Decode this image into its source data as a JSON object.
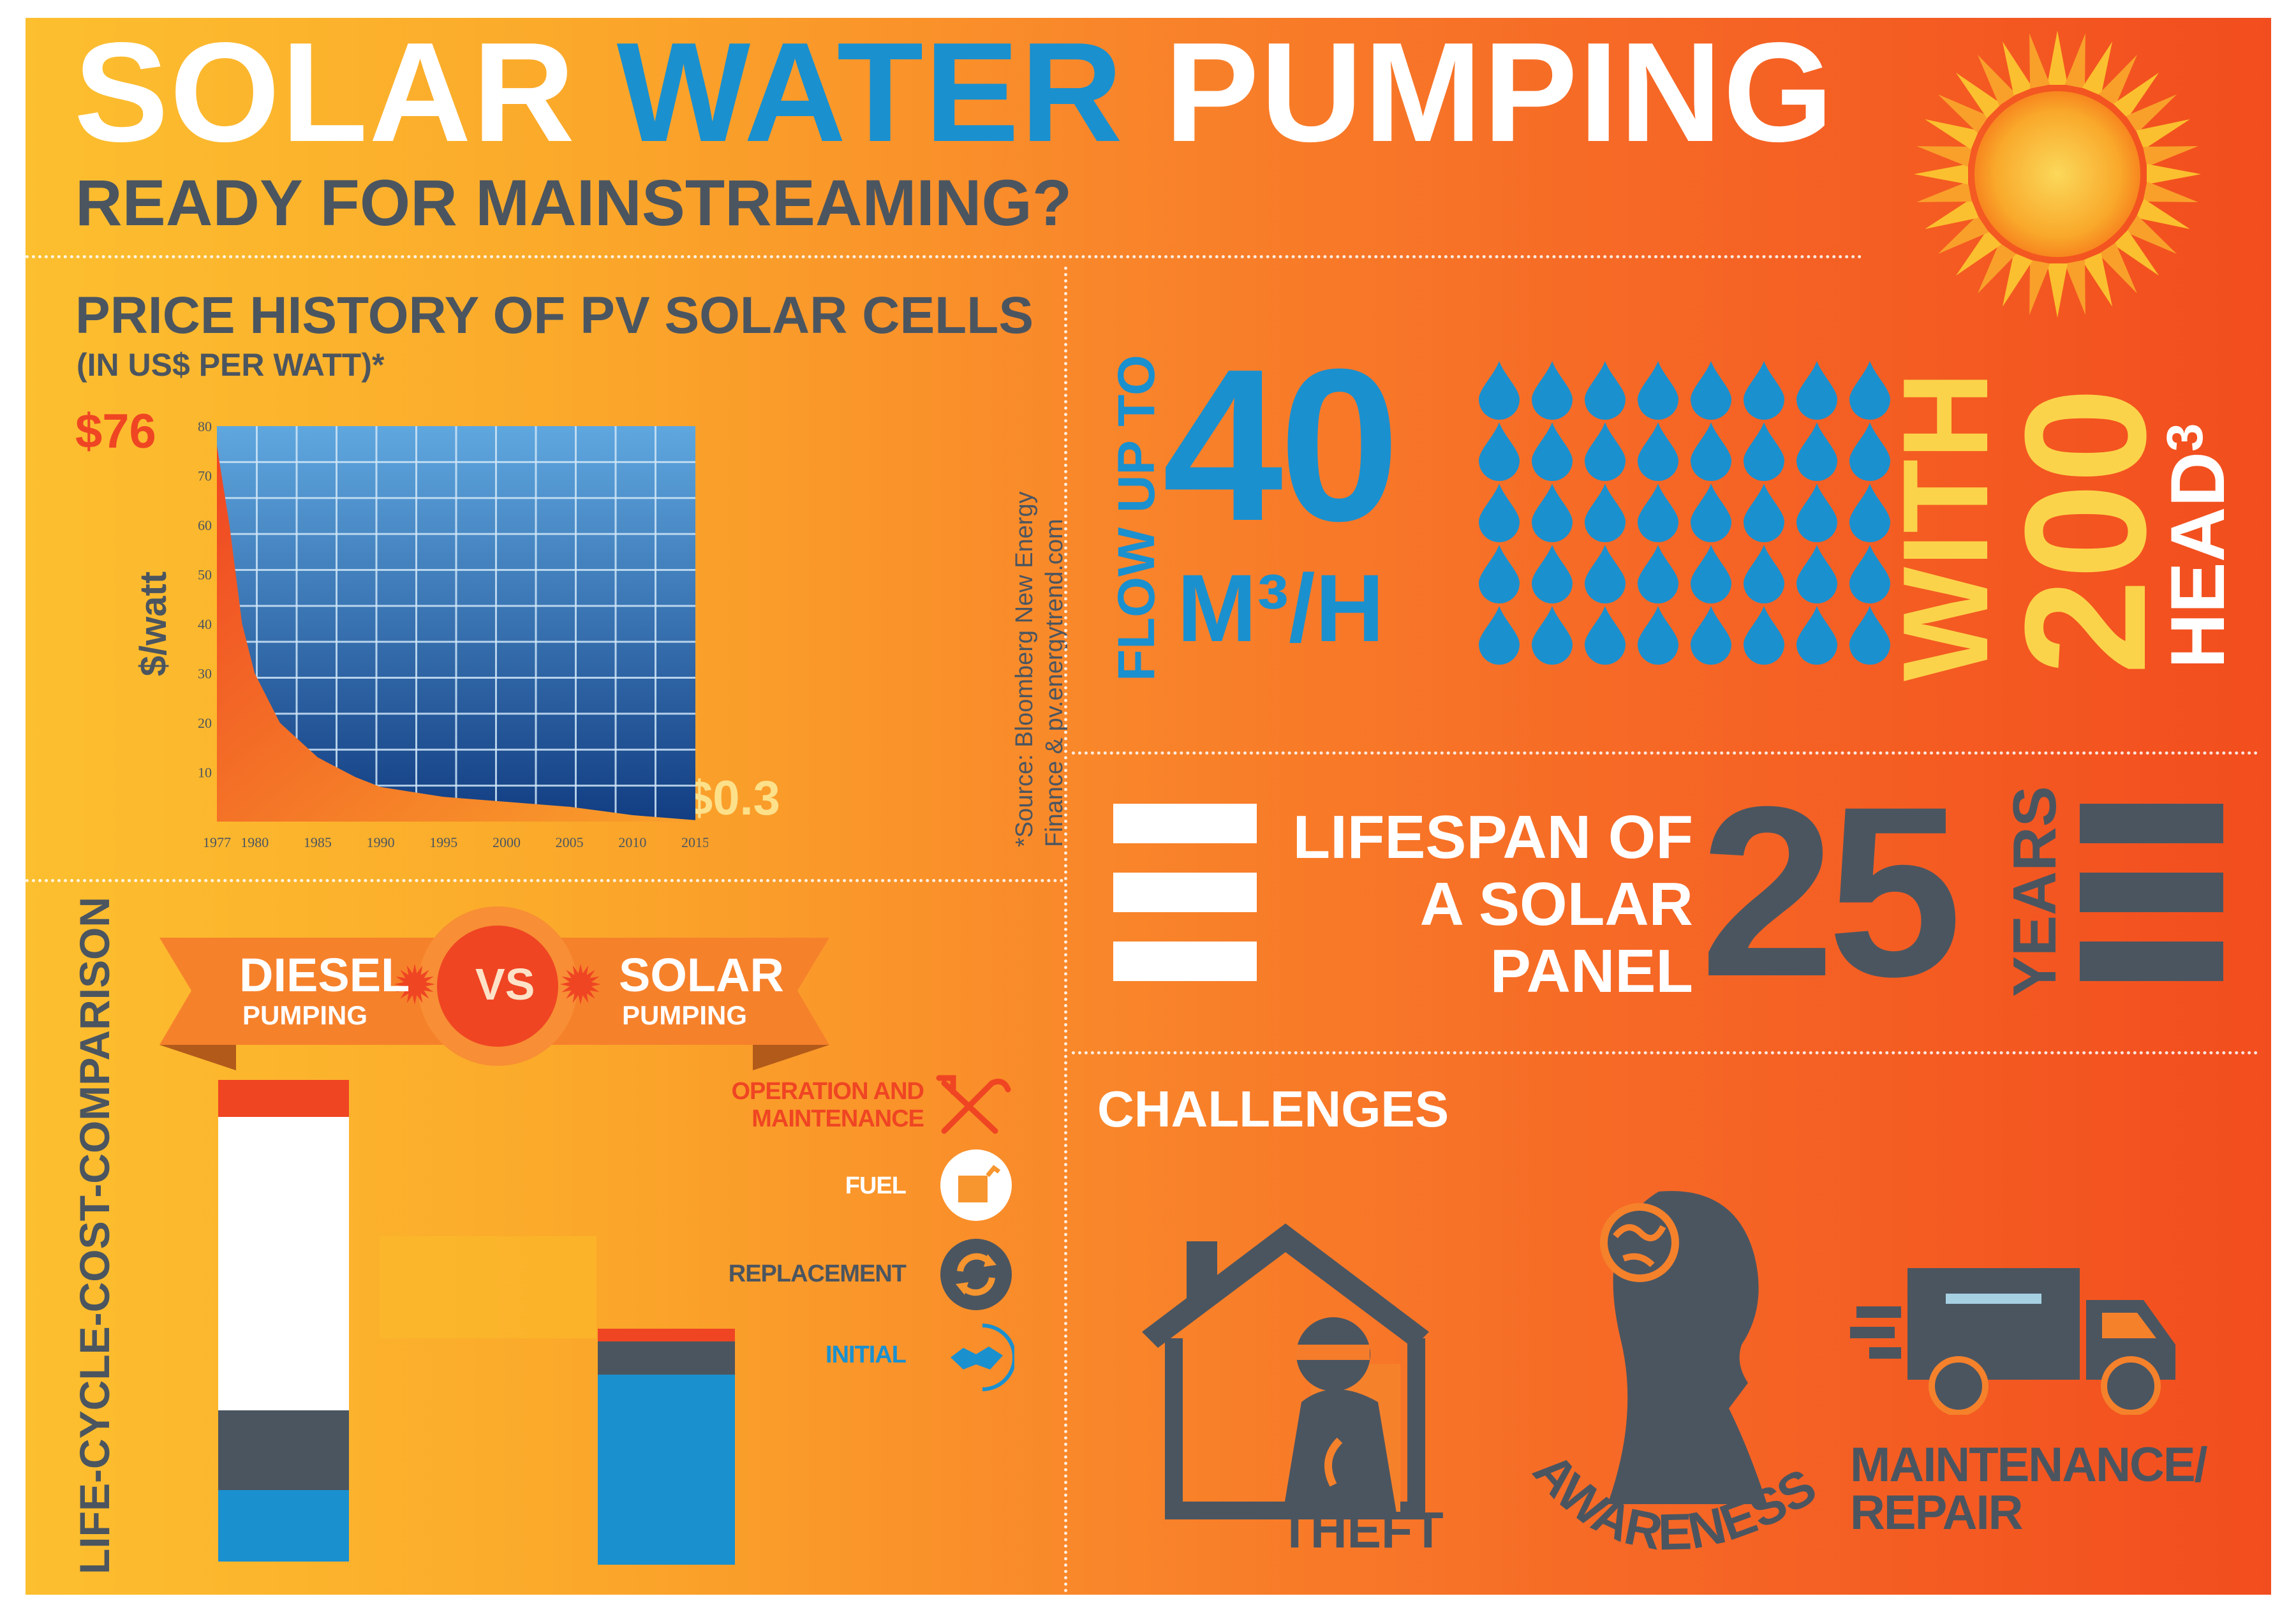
{
  "header": {
    "title_word1": "SOLAR",
    "title_word2": "WATER",
    "title_word3": "PUMPING",
    "subtitle": "READY FOR MAINSTREAMING?"
  },
  "colors": {
    "blue": "#1a90cf",
    "dark_gray": "#4b5560",
    "yellow": "#fbd34a",
    "red_orange": "#ef4523",
    "white": "#ffffff"
  },
  "price_history": {
    "title": "PRICE HISTORY OF PV SOLAR CELLS",
    "subtitle": "(IN US$ PER WATT)*",
    "start_value_label": "$76",
    "end_value_label": "$0.3",
    "source_line1": "*Source: Bloomberg New Energy",
    "source_line2": "Finance & pv.energytrend.com",
    "chart_data": {
      "type": "area",
      "ylabel": "$/watt",
      "ylim": [
        0,
        80
      ],
      "yticks": [
        "10",
        "20",
        "30",
        "40",
        "50",
        "60",
        "70",
        "80"
      ],
      "xticks": [
        "1977",
        "1980",
        "1985",
        "1990",
        "1995",
        "2000",
        "2005",
        "2010",
        "2015"
      ],
      "x": [
        1977,
        1978,
        1979,
        1980,
        1982,
        1985,
        1988,
        1990,
        1995,
        2000,
        2005,
        2008,
        2010,
        2013,
        2015
      ],
      "values": [
        76,
        60,
        40,
        30,
        20,
        13,
        9,
        7,
        5,
        4,
        3,
        2,
        1.3,
        0.7,
        0.3
      ]
    }
  },
  "flow": {
    "prefix": "FLOW UP TO",
    "number": "40",
    "unit": "M³/H",
    "with_label": "WITH",
    "head_number": "200",
    "head_unit": "HEAD",
    "head_sup": "3"
  },
  "lifespan": {
    "line1": "LIFESPAN OF",
    "line2": "A SOLAR",
    "line3": "PANEL",
    "number": "25",
    "unit": "YEARS"
  },
  "comparison": {
    "side_title": "LIFE-CYCLE-COST-COMPARISON",
    "left_title": "DIESEL",
    "left_sub": "PUMPING",
    "vs": "VS",
    "right_title": "SOLAR",
    "right_sub": "PUMPING",
    "legend": [
      {
        "label_line1": "OPERATION AND",
        "label_line2": "MAINTENANCE",
        "icon": "tools-icon",
        "color": "#ef4523"
      },
      {
        "label_line1": "FUEL",
        "label_line2": "",
        "icon": "fuel-can-icon",
        "color": "#ffffff"
      },
      {
        "label_line1": "REPLACEMENT",
        "label_line2": "",
        "icon": "recycle-icon",
        "color": "#4b5560"
      },
      {
        "label_line1": "INITIAL",
        "label_line2": "",
        "icon": "handshake-icon",
        "color": "#1a90cf"
      }
    ]
  },
  "challenges": {
    "title": "CHALLENGES",
    "items": [
      {
        "label": "THEFT",
        "icon": "house-thief-icon"
      },
      {
        "label": "AWARENESS",
        "icon": "head-globe-icon"
      },
      {
        "label_line1": "MAINTENANCE/",
        "label_line2": "REPAIR",
        "icon": "delivery-truck-icon"
      }
    ]
  }
}
